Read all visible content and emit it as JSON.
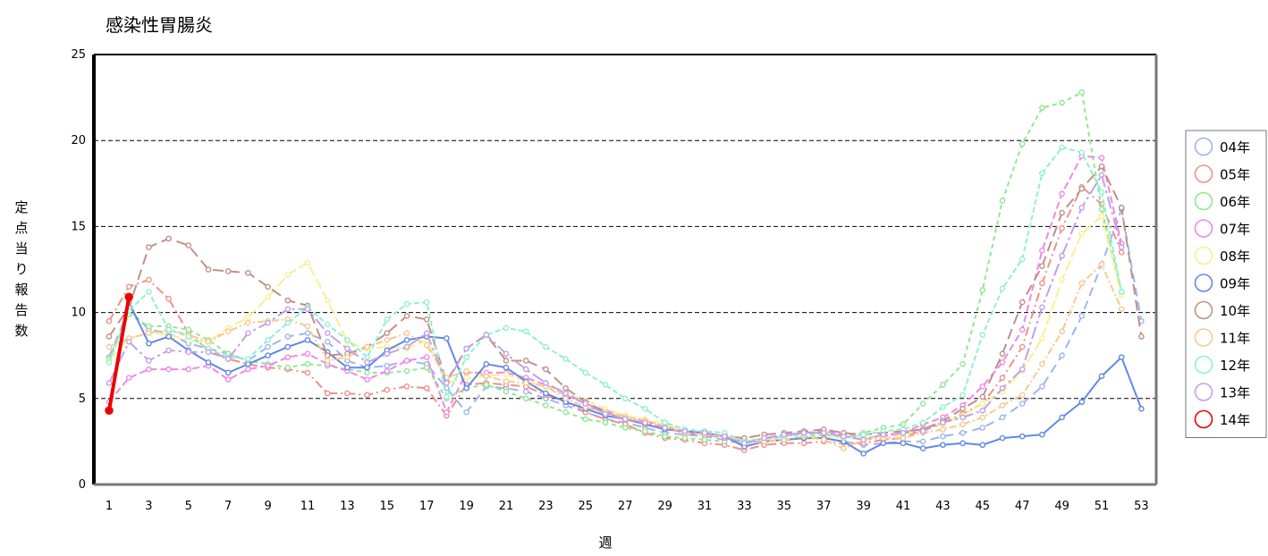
{
  "chart_data": {
    "type": "line",
    "title": "感染性胃腸炎",
    "xlabel": "週",
    "ylabel": "定点当り報告数",
    "xlim": [
      1,
      53
    ],
    "ylim": [
      0,
      25
    ],
    "x_ticks": [
      1,
      3,
      5,
      7,
      9,
      11,
      13,
      15,
      17,
      19,
      21,
      23,
      25,
      27,
      29,
      31,
      33,
      35,
      37,
      39,
      41,
      43,
      45,
      47,
      49,
      51,
      53
    ],
    "y_ticks": [
      0,
      5,
      10,
      15,
      20,
      25
    ],
    "grid": "horizontal dashed",
    "legend_position": "right",
    "series": [
      {
        "name": "04年",
        "color": "#9fb4f0",
        "dash": "10,6",
        "values": [
          7.4,
          10.2,
          9.0,
          8.8,
          8.2,
          7.9,
          7.6,
          7.2,
          8.0,
          8.6,
          8.8,
          8.3,
          7.2,
          6.8,
          6.9,
          7.2,
          7.0,
          5.6,
          4.2,
          5.7,
          5.6,
          5.4,
          5.0,
          4.6,
          4.2,
          3.8,
          3.6,
          3.3,
          3.0,
          2.9,
          2.8,
          2.6,
          2.5,
          2.5,
          2.6,
          2.7,
          2.7,
          2.5,
          2.3,
          2.4,
          2.5,
          2.5,
          2.8,
          3.0,
          3.3,
          3.9,
          4.7,
          5.7,
          7.5,
          9.8,
          12.8,
          16.0,
          9.5
        ]
      },
      {
        "name": "05年",
        "color": "#f0908a",
        "dash": "10,4,2,4",
        "values": [
          9.5,
          11.5,
          11.9,
          10.8,
          8.8,
          7.8,
          7.3,
          7.0,
          6.8,
          6.7,
          6.5,
          5.3,
          5.3,
          5.2,
          5.5,
          5.7,
          5.6,
          4.0,
          5.8,
          5.9,
          5.8,
          5.7,
          5.2,
          4.8,
          4.2,
          3.8,
          3.5,
          3.0,
          2.7,
          2.6,
          2.4,
          2.3,
          2.0,
          2.3,
          2.4,
          2.4,
          2.5,
          2.4,
          2.4,
          2.6,
          2.7,
          3.2,
          3.6,
          4.1,
          4.7,
          6.2,
          8.0,
          11.7,
          14.9,
          17.3,
          16.3,
          13.5
        ]
      },
      {
        "name": "06年",
        "color": "#90e890",
        "dash": "5,4",
        "values": [
          7.3,
          9.9,
          9.2,
          9.2,
          9.0,
          8.4,
          7.6,
          7.2,
          7.0,
          6.8,
          7.0,
          6.9,
          6.7,
          6.5,
          6.5,
          6.6,
          6.8,
          5.0,
          5.6,
          5.8,
          5.4,
          5.0,
          4.6,
          4.2,
          3.8,
          3.6,
          3.3,
          3.1,
          2.8,
          2.7,
          2.6,
          2.5,
          2.4,
          2.5,
          2.6,
          2.8,
          2.9,
          2.8,
          3.0,
          3.3,
          3.5,
          4.7,
          5.8,
          7.0,
          11.3,
          16.5,
          19.8,
          21.9,
          22.2,
          22.8,
          16.0,
          11.2
        ]
      },
      {
        "name": "07年",
        "color": "#f088e8",
        "dash": "8,4",
        "values": [
          4.8,
          6.2,
          6.7,
          6.7,
          6.7,
          6.9,
          6.1,
          6.7,
          6.9,
          7.4,
          7.6,
          7.0,
          6.6,
          6.1,
          6.6,
          7.2,
          7.4,
          4.2,
          6.5,
          6.5,
          6.5,
          6.2,
          5.8,
          5.2,
          4.7,
          4.3,
          4.0,
          3.7,
          3.4,
          3.1,
          2.9,
          2.7,
          2.5,
          2.6,
          2.8,
          3.0,
          3.1,
          2.9,
          2.7,
          2.8,
          3.0,
          3.5,
          3.9,
          4.6,
          5.7,
          7.1,
          9.0,
          13.6,
          16.9,
          19.1,
          19.0,
          14.0
        ]
      },
      {
        "name": "08年",
        "color": "#f8f090",
        "dash": "12,4",
        "values": [
          7.2,
          8.5,
          8.8,
          8.7,
          8.4,
          8.3,
          9.1,
          9.7,
          10.9,
          12.2,
          12.9,
          10.7,
          8.3,
          7.9,
          8.0,
          7.9,
          8.4,
          5.9,
          6.2,
          6.3,
          6.4,
          6.0,
          5.7,
          5.3,
          4.9,
          4.4,
          4.0,
          3.8,
          3.5,
          3.1,
          2.9,
          2.8,
          2.6,
          2.6,
          2.6,
          2.7,
          2.8,
          2.7,
          2.7,
          2.7,
          2.9,
          3.2,
          3.5,
          4.0,
          4.7,
          5.4,
          6.6,
          8.5,
          11.9,
          14.6,
          15.6,
          11.0
        ]
      },
      {
        "name": "09年",
        "color": "#6088e8",
        "dash": "",
        "values": [
          4.3,
          10.6,
          8.2,
          8.6,
          7.8,
          7.1,
          6.5,
          7.0,
          7.5,
          8.0,
          8.4,
          7.7,
          6.8,
          6.8,
          7.8,
          8.4,
          8.6,
          8.5,
          5.6,
          7.0,
          6.8,
          6.0,
          5.3,
          4.8,
          4.4,
          4.0,
          3.8,
          3.5,
          3.2,
          3.1,
          3.0,
          2.8,
          2.2,
          2.5,
          2.6,
          2.7,
          2.7,
          2.5,
          1.8,
          2.4,
          2.4,
          2.1,
          2.3,
          2.4,
          2.3,
          2.7,
          2.8,
          2.9,
          3.9,
          4.8,
          6.3,
          7.4,
          4.4
        ]
      },
      {
        "name": "10年",
        "color": "#c09088",
        "dash": "12,6",
        "values": [
          8.6,
          10.3,
          13.8,
          14.3,
          13.9,
          12.5,
          12.4,
          12.3,
          11.5,
          10.7,
          10.4,
          7.5,
          7.6,
          8.0,
          8.8,
          9.8,
          9.6,
          6.0,
          7.9,
          8.7,
          7.2,
          7.2,
          6.7,
          5.6,
          4.8,
          4.2,
          3.8,
          3.5,
          3.3,
          3.0,
          2.9,
          2.8,
          2.7,
          2.9,
          3.0,
          3.1,
          3.2,
          3.0,
          2.9,
          3.0,
          3.1,
          3.2,
          3.7,
          4.4,
          5.1,
          7.6,
          10.6,
          12.7,
          15.8,
          17.2,
          18.5,
          16.1,
          8.6
        ]
      },
      {
        "name": "11年",
        "color": "#f8c890",
        "dash": "8,3,2,3",
        "values": [
          8.0,
          8.5,
          8.8,
          9.0,
          8.7,
          8.3,
          8.9,
          9.4,
          9.5,
          9.6,
          9.2,
          7.2,
          7.4,
          8.0,
          8.4,
          8.8,
          8.1,
          6.2,
          6.6,
          6.3,
          6.0,
          5.9,
          5.7,
          5.0,
          4.5,
          4.2,
          3.9,
          3.7,
          3.4,
          3.0,
          2.9,
          2.8,
          2.4,
          2.5,
          2.6,
          2.8,
          2.6,
          2.1,
          2.6,
          2.7,
          2.7,
          3.0,
          3.2,
          3.5,
          3.9,
          4.6,
          5.2,
          7.0,
          8.9,
          11.7,
          12.8,
          10.2
        ]
      },
      {
        "name": "12年",
        "color": "#90f0d0",
        "dash": "6,3",
        "values": [
          7.1,
          10.1,
          11.2,
          9.0,
          8.6,
          7.9,
          7.4,
          7.3,
          8.4,
          9.4,
          10.3,
          9.3,
          8.4,
          7.4,
          9.6,
          10.5,
          10.6,
          5.1,
          7.4,
          8.7,
          9.1,
          8.9,
          8.0,
          7.3,
          6.5,
          5.8,
          5.0,
          4.4,
          3.6,
          3.2,
          3.1,
          3.0,
          2.5,
          2.7,
          2.8,
          2.9,
          3.0,
          2.7,
          2.9,
          3.1,
          3.2,
          3.6,
          4.5,
          5.2,
          8.7,
          11.4,
          13.1,
          18.1,
          19.6,
          19.3,
          17.0,
          11.2
        ]
      },
      {
        "name": "13年",
        "color": "#c0a0e8",
        "dash": "14,4,3,4",
        "values": [
          5.9,
          8.3,
          7.2,
          7.8,
          7.7,
          7.7,
          7.3,
          8.8,
          9.4,
          10.2,
          10.2,
          8.8,
          7.9,
          7.1,
          7.6,
          8.0,
          8.8,
          5.9,
          7.9,
          8.7,
          7.6,
          6.7,
          5.9,
          5.3,
          4.7,
          4.1,
          3.8,
          3.6,
          3.3,
          3.1,
          3.0,
          2.8,
          2.4,
          2.7,
          2.9,
          3.0,
          3.0,
          2.8,
          2.6,
          2.9,
          3.0,
          3.1,
          3.6,
          3.9,
          4.3,
          5.6,
          6.7,
          10.3,
          13.3,
          16.1,
          18.0,
          13.8
        ]
      },
      {
        "name": "14年",
        "color": "#ee0000",
        "dash": "",
        "values": [
          4.3,
          10.9
        ]
      }
    ]
  }
}
